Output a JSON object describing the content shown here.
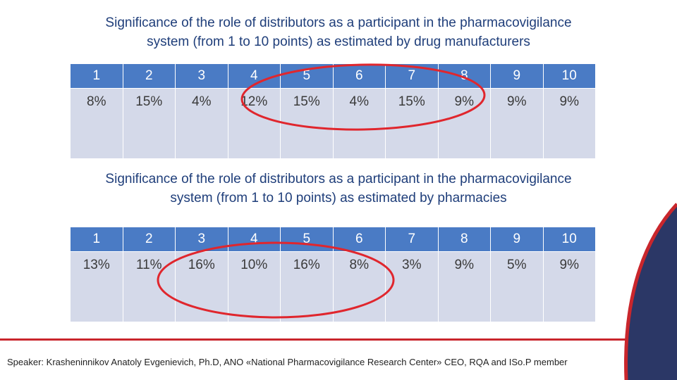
{
  "slide": {
    "accent_red": "#c9262c",
    "accent_navy": "#2b3766",
    "header_blue": "#4a7bc5",
    "cell_blue": "#d4d9e9"
  },
  "sections": [
    {
      "title_line1": "Significance of the role of distributors as a participant in the pharmacovigilance",
      "title_line2": "system (from 1 to 10 points) as estimated by drug manufacturers",
      "headers": [
        "1",
        "2",
        "3",
        "4",
        "5",
        "6",
        "7",
        "8",
        "9",
        "10"
      ],
      "values": [
        "8%",
        "15%",
        "4%",
        "12%",
        "15%",
        "4%",
        "15%",
        "9%",
        "9%",
        "9%"
      ]
    },
    {
      "title_line1": "Significance of the role of distributors as a participant in the pharmacovigilance",
      "title_line2": "system (from 1 to 10 points) as estimated by pharmacies",
      "headers": [
        "1",
        "2",
        "3",
        "4",
        "5",
        "6",
        "7",
        "8",
        "9",
        "10"
      ],
      "values": [
        "13%",
        "11%",
        "16%",
        "10%",
        "16%",
        "8%",
        "3%",
        "9%",
        "5%",
        "9%"
      ]
    }
  ],
  "footer": {
    "speaker": "Speaker: Krasheninnikov Anatoly Evgenievich, Ph.D, ANO «National Pharmacovigilance Research Center» CEO, RQA and ISo.P member"
  }
}
